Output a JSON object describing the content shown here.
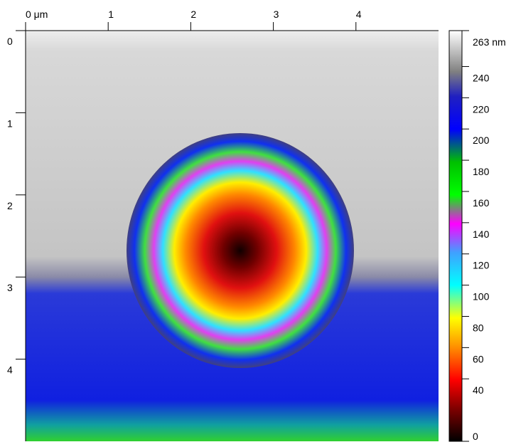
{
  "chart_data": {
    "type": "image",
    "xlim": [
      0,
      5
    ],
    "xticks": [
      {
        "value": 0,
        "label": "0 μm"
      },
      1,
      2,
      3,
      4
    ],
    "ylim": [
      0,
      5
    ],
    "yticks": [
      0,
      1,
      2,
      3,
      4
    ],
    "clim": [
      0,
      263
    ],
    "cticks": [
      {
        "value": 263,
        "label": "263 nm"
      },
      240,
      220,
      200,
      180,
      160,
      140,
      120,
      100,
      80,
      60,
      40,
      0
    ]
  }
}
